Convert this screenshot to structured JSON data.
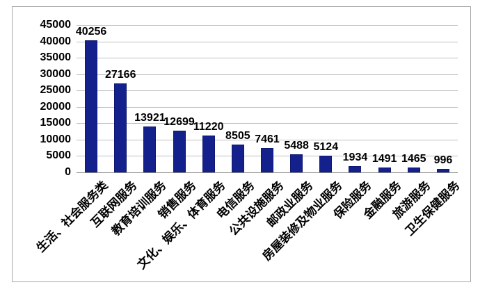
{
  "chart_data": {
    "type": "bar",
    "title": "",
    "xlabel": "",
    "ylabel": "",
    "categories": [
      "生活、社会服务类",
      "互联网服务",
      "教育培训服务",
      "销售服务",
      "文化、娱乐、体育服务",
      "电信服务",
      "公共设施服务",
      "邮政业服务",
      "房屋装修及物业服务",
      "保险服务",
      "金融服务",
      "旅游服务",
      "卫生保健服务"
    ],
    "values": [
      40256,
      27166,
      13921,
      12699,
      11220,
      8505,
      7461,
      5488,
      5124,
      1934,
      1491,
      1465,
      996
    ],
    "value_labels": [
      "40256",
      "27166",
      "13921",
      "12699",
      "11220",
      "8505",
      "7461",
      "5488",
      "5124",
      "1934",
      "1491",
      "1465",
      "996"
    ],
    "ylim": [
      0,
      45000
    ],
    "ytick_step": 5000,
    "ytick_labels": [
      "0",
      "5000",
      "10000",
      "15000",
      "20000",
      "25000",
      "30000",
      "35000",
      "40000",
      "45000"
    ],
    "grid": true,
    "legend": false,
    "data_labels_shown": true,
    "x_label_rotation_deg": -45,
    "colors": {
      "bar": "#14208c",
      "bar_edge": "#0f1872",
      "gridline": "#bfbfbf",
      "axis_line": "#8c8c8c",
      "text": "#000000",
      "frame_border": "#a6a6a6",
      "background": "#ffffff"
    }
  }
}
